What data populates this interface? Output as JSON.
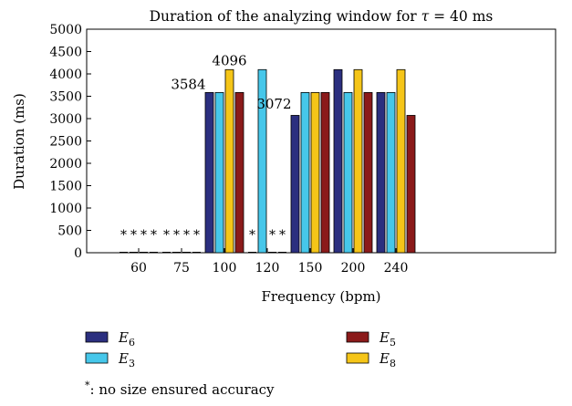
{
  "chart_data": {
    "type": "bar",
    "title_main": "Duration of the analyzing window for",
    "title_tau": "τ",
    "title_value": "= 40 ms",
    "xlabel": "Frequency (bpm)",
    "ylabel": "Duration (ms)",
    "ylim": [
      0,
      5000
    ],
    "yticks": [
      "0",
      "500",
      "1000",
      "1500",
      "2000",
      "2500",
      "3000",
      "3500",
      "4000",
      "4500",
      "5000"
    ],
    "categories": [
      "60",
      "75",
      "100",
      "120",
      "150",
      "200",
      "240"
    ],
    "grid": false,
    "series": [
      {
        "name_base": "E",
        "name_sub": "6",
        "color": "#2b2f7f",
        "values": [
          0,
          0,
          3584,
          0,
          3072,
          4096,
          3584
        ]
      },
      {
        "name_base": "E",
        "name_sub": "3",
        "color": "#46c7ea",
        "values": [
          0,
          0,
          3584,
          4096,
          3584,
          3584,
          3584
        ]
      },
      {
        "name_base": "E",
        "name_sub": "8",
        "color": "#f5c518",
        "values": [
          0,
          0,
          4096,
          0,
          3584,
          4096,
          4096
        ]
      },
      {
        "name_base": "E",
        "name_sub": "5",
        "color": "#8b1a1a",
        "values": [
          0,
          0,
          3584,
          0,
          3584,
          3584,
          3072
        ]
      }
    ],
    "star_marker": "*",
    "annotations": [
      "3584",
      "4096",
      "3072"
    ],
    "footnote_star": "*",
    "footnote_text": ": no size ensured accuracy"
  }
}
